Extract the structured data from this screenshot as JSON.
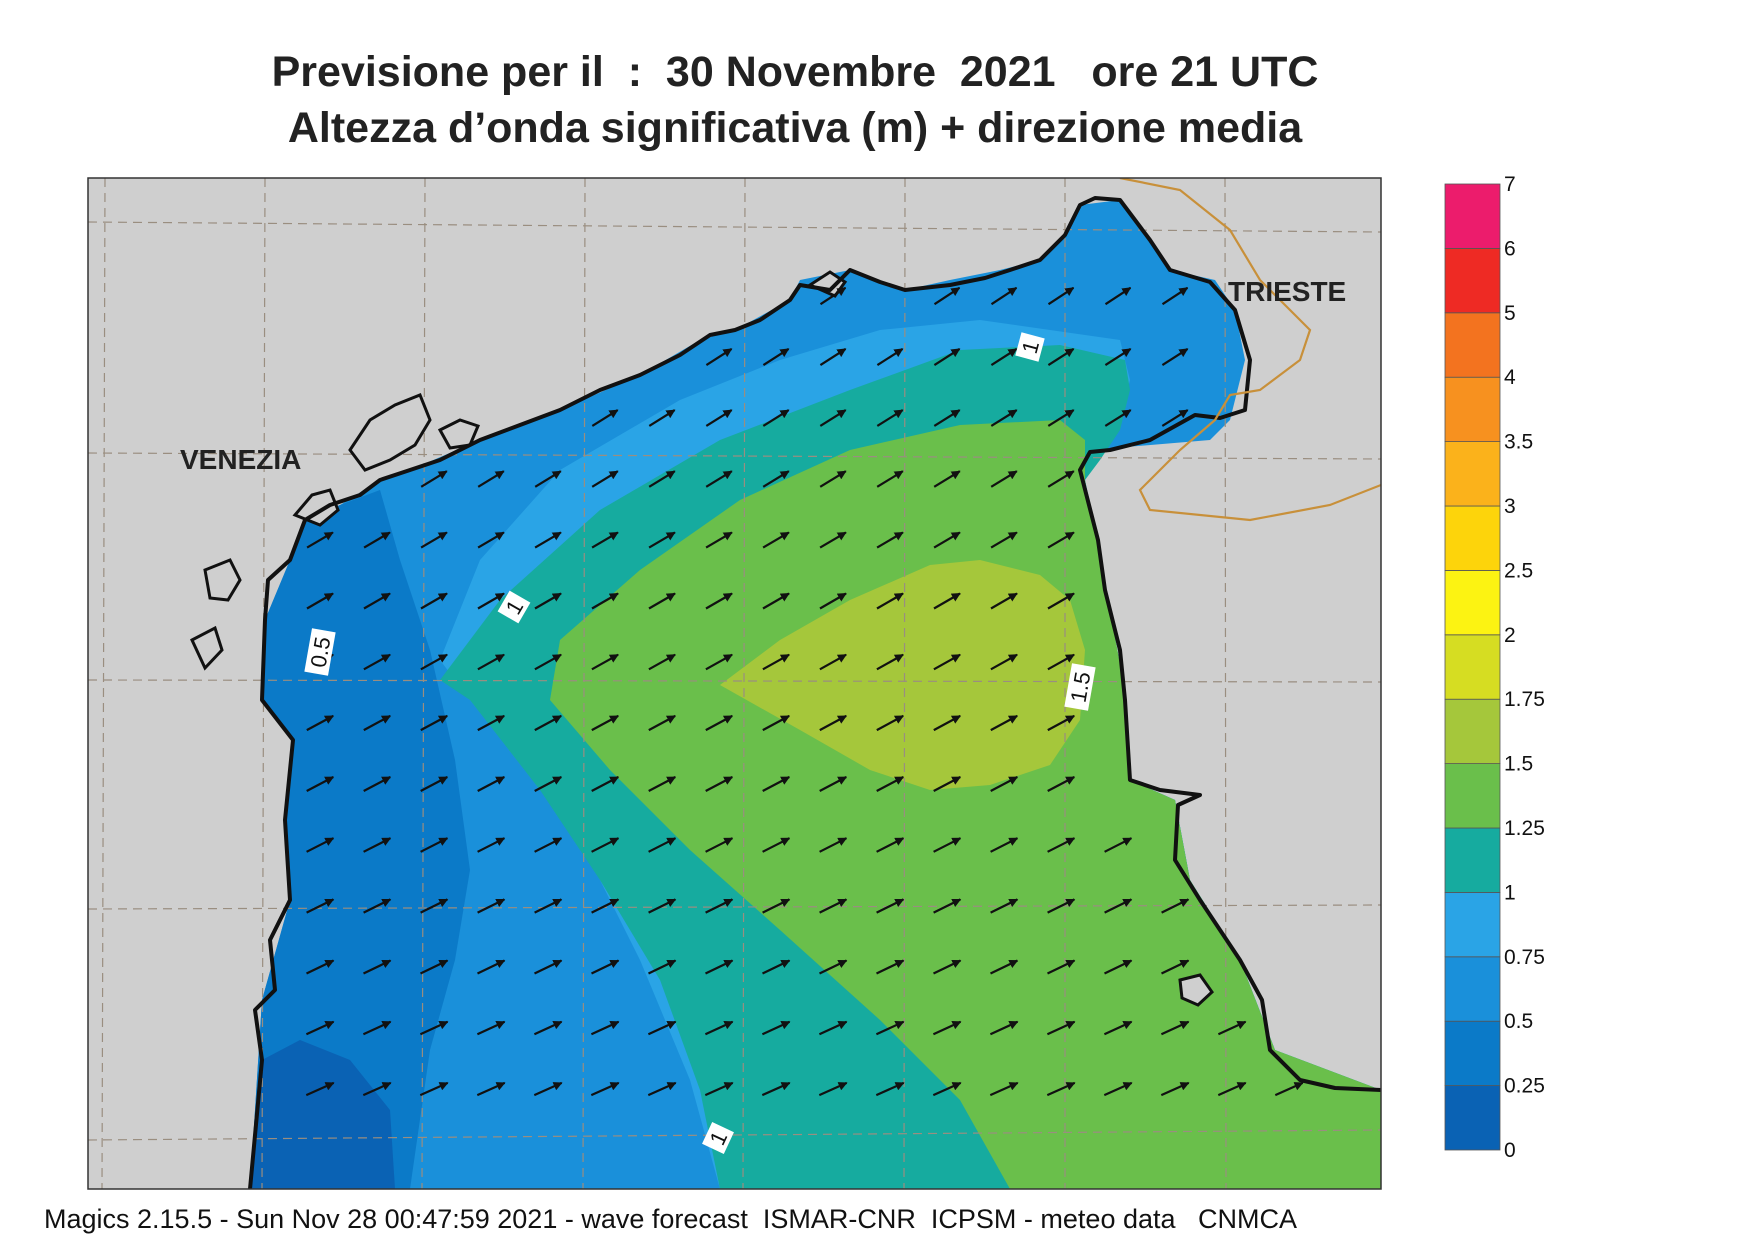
{
  "header": {
    "title_line1": "Previsione per il  :  30 Novembre  2021   ore 21 UTC",
    "title_line2": "Altezza d’onda significativa (m) + direzione media"
  },
  "map": {
    "places": [
      {
        "name": "VENEZIA"
      },
      {
        "name": "TRIESTE"
      }
    ],
    "contour_labels": [
      "1",
      "1",
      "1",
      "0.5",
      "1.5"
    ],
    "wave_direction": "toward north-east",
    "colors": {
      "land": "#cfcfcf",
      "coast": "#111111",
      "border": "#c8903a",
      "grid": "#9a8e80",
      "arrow": "#111111"
    }
  },
  "colorbar": {
    "levels": [
      "0",
      "0.25",
      "0.5",
      "0.75",
      "1",
      "1.25",
      "1.5",
      "1.75",
      "2",
      "2.5",
      "3",
      "3.5",
      "4",
      "5",
      "6",
      "7"
    ],
    "colors": [
      "#0a62b4",
      "#0b7ac8",
      "#1a90da",
      "#2aa4e6",
      "#16ab9f",
      "#6abf4b",
      "#a5c73b",
      "#d6dd22",
      "#fcf312",
      "#fdd40b",
      "#fbb21b",
      "#f7911f",
      "#f3731f",
      "#ee2a24",
      "#ec1c6c"
    ]
  },
  "footer": {
    "text": "Magics 2.15.5 - Sun Nov 28 00:47:59 2021 - wave forecast  ISMAR-CNR  ICPSM - meteo data   CNMCA"
  }
}
